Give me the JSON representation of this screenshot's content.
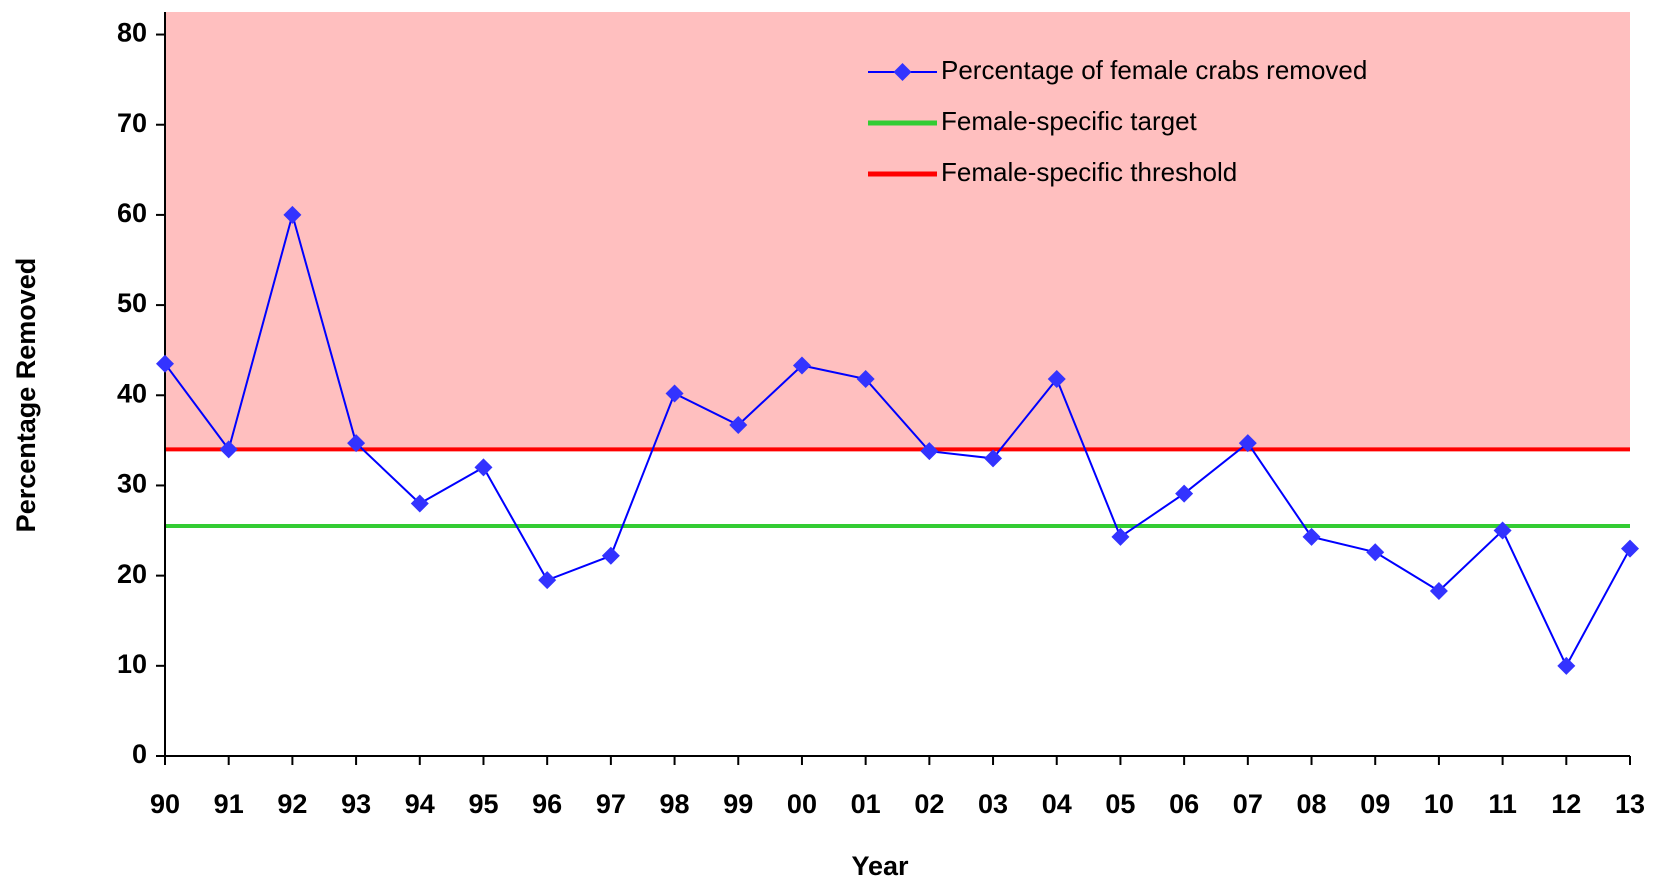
{
  "chart_data": {
    "type": "line",
    "x_label": "Year",
    "y_label": "Percentage Removed",
    "categories": [
      "90",
      "91",
      "92",
      "93",
      "94",
      "95",
      "96",
      "97",
      "98",
      "99",
      "00",
      "01",
      "02",
      "03",
      "04",
      "05",
      "06",
      "07",
      "08",
      "09",
      "10",
      "11",
      "12",
      "13"
    ],
    "series": [
      {
        "name": "Percentage of female crabs removed",
        "color": "#0000ff",
        "marker_color": "#3333ff",
        "values": [
          43.5,
          34,
          60,
          34.7,
          28,
          32,
          19.5,
          22.2,
          40.2,
          36.7,
          43.3,
          41.8,
          33.8,
          33,
          41.8,
          24.3,
          29.1,
          34.7,
          24.3,
          22.6,
          18.3,
          25,
          10,
          23
        ]
      }
    ],
    "reference_lines": [
      {
        "name": "Female-specific target",
        "color": "#33cc33",
        "value": 25.5
      },
      {
        "name": "Female-specific threshold",
        "color": "#ff0000",
        "value": 34,
        "shade_above": "#ffbfbf"
      }
    ],
    "ylim": [
      0,
      82.5
    ],
    "yticks": [
      0,
      10,
      20,
      30,
      40,
      50,
      60,
      70,
      80
    ]
  }
}
